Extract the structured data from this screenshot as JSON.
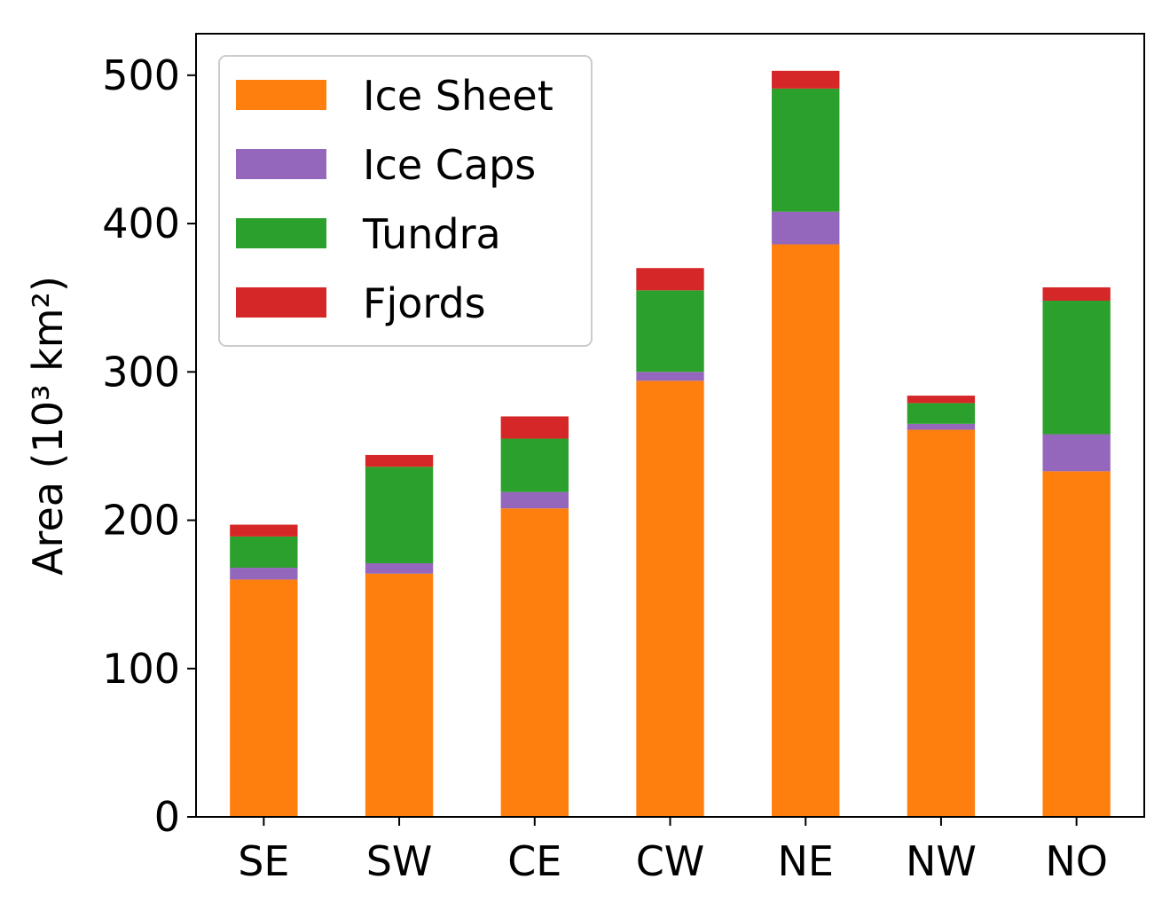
{
  "chart_data": {
    "type": "bar",
    "stacked": true,
    "categories": [
      "SE",
      "SW",
      "CE",
      "CW",
      "NE",
      "NW",
      "NO"
    ],
    "series": [
      {
        "name": "Ice Sheet",
        "color": "#ff7f0e",
        "values": [
          160,
          164,
          208,
          294,
          386,
          261,
          233
        ]
      },
      {
        "name": "Ice Caps",
        "color": "#9467bd",
        "values": [
          8,
          7,
          11,
          6,
          22,
          4,
          25
        ]
      },
      {
        "name": "Tundra",
        "color": "#2ca02c",
        "values": [
          21,
          65,
          36,
          55,
          83,
          14,
          90
        ]
      },
      {
        "name": "Fjords",
        "color": "#d62728",
        "values": [
          8,
          8,
          15,
          15,
          12,
          5,
          9
        ]
      }
    ],
    "title": "",
    "xlabel": "",
    "ylabel": "Area (10³ km²)",
    "ylim": [
      0,
      528
    ],
    "yticks": [
      0,
      100,
      200,
      300,
      400,
      500
    ],
    "grid": false,
    "legend_position": "top-left"
  }
}
